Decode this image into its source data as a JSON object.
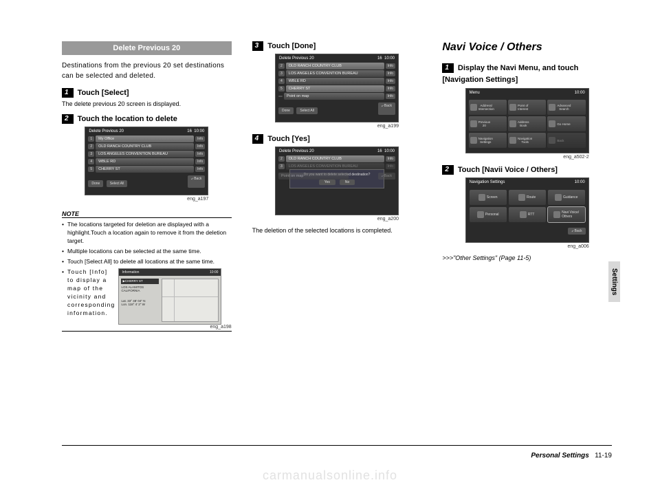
{
  "col1": {
    "section_title": "Delete Previous 20",
    "intro": "Destinations from the previous 20 set destinations can be selected and deleted.",
    "step1_num": "1",
    "step1_text": "Touch [Select]",
    "step1_sub": "The delete previous 20 screen is displayed.",
    "step2_num": "2",
    "step2_text": "Touch the location to delete",
    "scr1": {
      "title": "Delete Previous 20",
      "count": "16",
      "time": "10:00",
      "rows": [
        {
          "n": "1",
          "label": "My Office",
          "hl": true
        },
        {
          "n": "2",
          "label": "OLD RANCH COUNTRY CLUB",
          "hl": false
        },
        {
          "n": "3",
          "label": "LOS ANGELES CONVENTION BUREAU",
          "hl": false
        },
        {
          "n": "4",
          "label": "WBLE RD",
          "hl": false
        },
        {
          "n": "5",
          "label": "CHERRY ST",
          "hl": false
        }
      ],
      "info": "Info",
      "done": "Done",
      "select_all": "Select All",
      "back": "Back"
    },
    "cap1": "eng_a197",
    "note_head": "NOTE",
    "notes": [
      "The locations targeted for deletion are displayed with a highlight.Touch a location again to remove it from the deletion target.",
      "Multiple locations can be selected at the same time.",
      "Touch [Select All] to delete all locations at the same time."
    ],
    "note4_text": "Touch [Info] to display a map of the vicinity and corresponding information.",
    "info_shot": {
      "title": "Information",
      "time": "10:00",
      "loc": "CHERRY ST",
      "addr": "LOS ALAMITOS\nCALIFORNIA",
      "lat": "Lat.   33° 48' 04\" N",
      "lon": "Lon. 118°  4'  2\" W"
    },
    "cap_info": "eng_a198"
  },
  "col2": {
    "step3_num": "3",
    "step3_text": "Touch [Done]",
    "scr2": {
      "title": "Delete Previous 20",
      "count": "16",
      "time": "10:00",
      "rows": [
        {
          "n": "2",
          "label": "OLD RANCH COUNTRY CLUB",
          "hl": true
        },
        {
          "n": "3",
          "label": "LOS ANGELES CONVENTION BUREAU",
          "hl": false
        },
        {
          "n": "4",
          "label": "WBLE RD",
          "hl": false
        },
        {
          "n": "5",
          "label": "CHERRY ST",
          "hl": true
        },
        {
          "n": "",
          "label": "Point on map",
          "hl": false
        }
      ],
      "info": "Info",
      "done": "Done",
      "select_all": "Select All",
      "back": "Back"
    },
    "cap2": "eng_a199",
    "step4_num": "4",
    "step4_text": "Touch [Yes]",
    "scr3": {
      "title": "Delete Previous 20",
      "count": "16",
      "time": "10:00",
      "row1": "OLD RANCH COUNTRY CLUB",
      "row2": "LOS ANGELES CONVENTION BUREAU",
      "prompt": "Do you want to delete selected destination?",
      "yes": "Yes",
      "no": "No",
      "bottom": "Point on map",
      "back": "Back"
    },
    "cap3": "eng_a200",
    "result": "The deletion of the selected locations is completed."
  },
  "col3": {
    "title": "Navi Voice / Others",
    "step1_num": "1",
    "step1_line1": "Display the Navi Menu, and touch",
    "step1_line2": "[Navigation Settings]",
    "menu": {
      "title": "Menu",
      "time": "10:00",
      "items": [
        "Address/\nIntersection",
        "Point of\nInterest",
        "Advanced\nSearch",
        "Previous\n20",
        "Address\nBook",
        "Go Home",
        "Navigation\nSettings",
        "Navigation\nTools",
        "Back"
      ]
    },
    "cap_menu": "eng_a502-2",
    "step2_num": "2",
    "step2_text": "Touch [Navii Voice / Others]",
    "nav": {
      "title": "Navigation Settings",
      "time": "10:00",
      "items": [
        "Screen",
        "Route",
        "Guidance",
        "Personal",
        "RTT",
        "Navi Voice/\nOthers"
      ],
      "back": "Back"
    },
    "cap_nav": "eng_a006",
    "ref": ">>>\"Other Settings\" (Page 11-5)"
  },
  "tab": "Settings",
  "footer_label": "Personal Settings",
  "footer_page": "11-19",
  "watermark": "carmanualsonline.info"
}
